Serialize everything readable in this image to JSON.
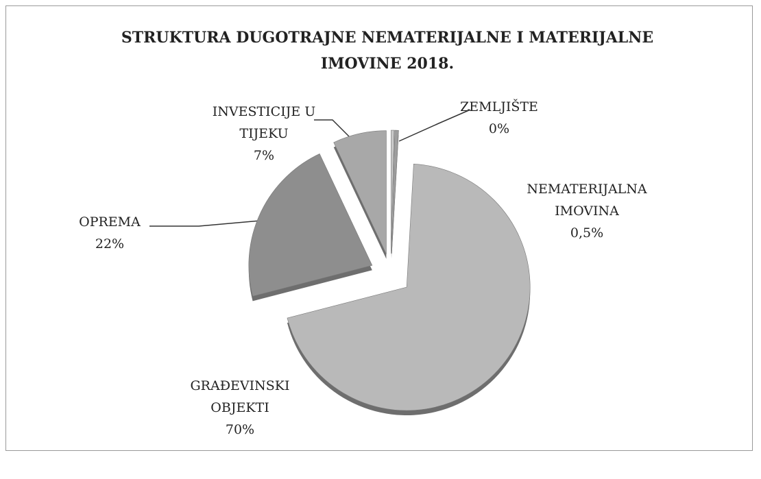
{
  "chart_data": {
    "type": "pie",
    "title": "STRUKTURA DUGOTRAJNE NEMATERIJALNE I MATERIJALNE IMOVINE 2018.",
    "categories": [
      "ZEMLJIŠTE",
      "NEMATERIJALNA IMOVINA",
      "GRAĐEVINSKI OBJEKTI",
      "OPREMA",
      "INVESTICIJE U TIJEKU"
    ],
    "values": [
      0.4,
      0.5,
      70,
      22,
      7
    ],
    "value_labels": [
      "0%",
      "0,5%",
      "70%",
      "22%",
      "7%"
    ],
    "colors": [
      "#c9c9c9",
      "#9e9e9e",
      "#b9b9b9",
      "#8e8e8e",
      "#a8a8a8"
    ]
  }
}
